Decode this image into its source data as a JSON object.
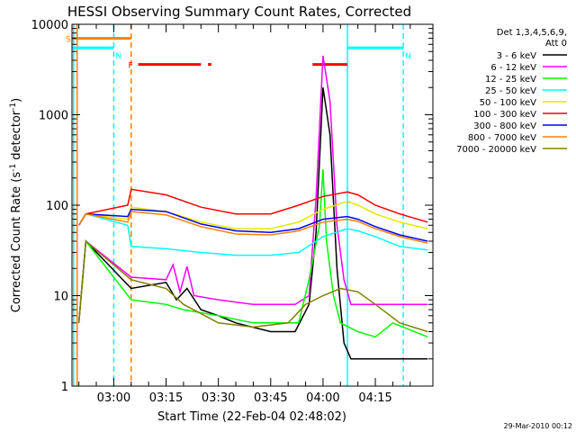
{
  "chart_data": {
    "type": "line",
    "title": "HESSI Observing Summary Count Rates, Corrected",
    "xlabel": "Start Time (22-Feb-04 02:48:02)",
    "ylabel": "Corrected Count Rate (s⁻¹ detector⁻¹)",
    "ylabel_parts": [
      "Corrected Count Rate (s",
      "-1",
      " detector",
      "-1",
      ")"
    ],
    "yscale": "log",
    "ylim": [
      1,
      10000
    ],
    "xlim_minutes": [
      168.03,
      271.5
    ],
    "x_ticks": [
      {
        "label": "03:00",
        "minutes": 180
      },
      {
        "label": "03:15",
        "minutes": 195
      },
      {
        "label": "03:30",
        "minutes": 210
      },
      {
        "label": "03:45",
        "minutes": 225
      },
      {
        "label": "04:00",
        "minutes": 240
      },
      {
        "label": "04:15",
        "minutes": 255
      }
    ],
    "y_ticks": [
      {
        "label": "1",
        "value": 1
      },
      {
        "label": "10",
        "value": 10
      },
      {
        "label": "100",
        "value": 100
      },
      {
        "label": "1000",
        "value": 1000
      },
      {
        "label": "10000",
        "value": 10000
      }
    ],
    "legend_title": [
      "Det 1,3,4,5,6,9,",
      "Att 0"
    ],
    "legend_position": "right",
    "series": [
      {
        "name": "3 - 6 keV",
        "color": "#000000",
        "points": [
          [
            170,
            5
          ],
          [
            172,
            40
          ],
          [
            185,
            12
          ],
          [
            195,
            14
          ],
          [
            198,
            9
          ],
          [
            201,
            12
          ],
          [
            205,
            7
          ],
          [
            210,
            6
          ],
          [
            215,
            5
          ],
          [
            225,
            4
          ],
          [
            232,
            4
          ],
          [
            236,
            8
          ],
          [
            238,
            50
          ],
          [
            240,
            2000
          ],
          [
            242,
            600
          ],
          [
            244,
            20
          ],
          [
            246,
            3
          ],
          [
            248,
            2
          ],
          [
            270,
            2
          ]
        ]
      },
      {
        "name": "6 - 12 keV",
        "color": "#ff00ff",
        "points": [
          [
            170,
            5
          ],
          [
            172,
            40
          ],
          [
            185,
            16
          ],
          [
            195,
            15
          ],
          [
            197,
            22
          ],
          [
            199,
            11
          ],
          [
            201,
            21
          ],
          [
            203,
            10
          ],
          [
            210,
            9
          ],
          [
            220,
            8
          ],
          [
            232,
            8
          ],
          [
            236,
            10
          ],
          [
            238,
            120
          ],
          [
            240,
            4500
          ],
          [
            242,
            1400
          ],
          [
            244,
            60
          ],
          [
            246,
            15
          ],
          [
            248,
            8
          ],
          [
            270,
            8
          ]
        ]
      },
      {
        "name": "12 - 25 keV",
        "color": "#00ff00",
        "points": [
          [
            170,
            5
          ],
          [
            172,
            40
          ],
          [
            185,
            9
          ],
          [
            195,
            8
          ],
          [
            200,
            7
          ],
          [
            210,
            6
          ],
          [
            220,
            5
          ],
          [
            233,
            5
          ],
          [
            236,
            15
          ],
          [
            239,
            60
          ],
          [
            240,
            250
          ],
          [
            241,
            40
          ],
          [
            243,
            10
          ],
          [
            245,
            5
          ],
          [
            250,
            4
          ],
          [
            255,
            3.5
          ],
          [
            260,
            5
          ],
          [
            270,
            3.5
          ]
        ]
      },
      {
        "name": "25 - 50 keV",
        "color": "#00ffff",
        "points": [
          [
            170,
            60
          ],
          [
            172,
            80
          ],
          [
            184,
            60
          ],
          [
            185,
            35
          ],
          [
            195,
            33
          ],
          [
            205,
            30
          ],
          [
            215,
            28
          ],
          [
            225,
            28
          ],
          [
            233,
            30
          ],
          [
            240,
            45
          ],
          [
            247,
            55
          ],
          [
            250,
            52
          ],
          [
            255,
            45
          ],
          [
            262,
            35
          ],
          [
            270,
            32
          ]
        ]
      },
      {
        "name": "50 - 100 keV",
        "color": "#e6e600",
        "points": [
          [
            170,
            60
          ],
          [
            172,
            80
          ],
          [
            184,
            70
          ],
          [
            185,
            95
          ],
          [
            195,
            85
          ],
          [
            205,
            65
          ],
          [
            215,
            55
          ],
          [
            225,
            55
          ],
          [
            233,
            65
          ],
          [
            240,
            90
          ],
          [
            247,
            110
          ],
          [
            250,
            100
          ],
          [
            255,
            80
          ],
          [
            262,
            65
          ],
          [
            270,
            55
          ]
        ]
      },
      {
        "name": "100 - 300 keV",
        "color": "#ff0000",
        "points": [
          [
            170,
            60
          ],
          [
            172,
            80
          ],
          [
            184,
            100
          ],
          [
            185,
            150
          ],
          [
            195,
            130
          ],
          [
            205,
            95
          ],
          [
            215,
            80
          ],
          [
            225,
            80
          ],
          [
            233,
            100
          ],
          [
            240,
            125
          ],
          [
            247,
            140
          ],
          [
            250,
            130
          ],
          [
            255,
            100
          ],
          [
            262,
            80
          ],
          [
            270,
            65
          ]
        ]
      },
      {
        "name": "300 - 800 keV",
        "color": "#0000ff",
        "points": [
          [
            170,
            60
          ],
          [
            172,
            80
          ],
          [
            184,
            75
          ],
          [
            185,
            90
          ],
          [
            195,
            85
          ],
          [
            205,
            62
          ],
          [
            215,
            52
          ],
          [
            225,
            50
          ],
          [
            233,
            55
          ],
          [
            240,
            70
          ],
          [
            247,
            75
          ],
          [
            250,
            70
          ],
          [
            255,
            58
          ],
          [
            262,
            47
          ],
          [
            270,
            40
          ]
        ]
      },
      {
        "name": "800 - 7000 keV",
        "color": "#ff8000",
        "points": [
          [
            170,
            60
          ],
          [
            172,
            80
          ],
          [
            184,
            65
          ],
          [
            185,
            85
          ],
          [
            195,
            78
          ],
          [
            205,
            58
          ],
          [
            215,
            48
          ],
          [
            225,
            47
          ],
          [
            233,
            52
          ],
          [
            240,
            65
          ],
          [
            247,
            70
          ],
          [
            250,
            66
          ],
          [
            255,
            55
          ],
          [
            262,
            45
          ],
          [
            270,
            38
          ]
        ]
      },
      {
        "name": "7000 - 20000 keV",
        "color": "#808000",
        "points": [
          [
            170,
            5
          ],
          [
            172,
            40
          ],
          [
            185,
            15
          ],
          [
            195,
            12
          ],
          [
            200,
            8
          ],
          [
            210,
            5
          ],
          [
            220,
            4.5
          ],
          [
            230,
            5
          ],
          [
            235,
            8
          ],
          [
            240,
            10
          ],
          [
            245,
            12
          ],
          [
            250,
            11
          ],
          [
            255,
            8
          ],
          [
            262,
            5
          ],
          [
            270,
            4
          ]
        ]
      }
    ],
    "flags": [
      {
        "label": "S",
        "color": "#ff8000",
        "start_minutes": 168,
        "end_minutes": 185,
        "value": 7000
      },
      {
        "label": "N",
        "color": "#00ffff",
        "start_minutes": 168,
        "end_minutes": 180,
        "value": 5500
      },
      {
        "label": "N",
        "color": "#00ffff",
        "start_minutes": 247,
        "end_minutes": 263,
        "value": 5500
      },
      {
        "label": "F",
        "color": "#ff0000",
        "start_minutes": 187,
        "end_minutes": 205,
        "value": 3600
      },
      {
        "label": "",
        "color": "#ff0000",
        "start_minutes": 207,
        "end_minutes": 208,
        "value": 3600
      },
      {
        "label": "",
        "color": "#ff0000",
        "start_minutes": 237,
        "end_minutes": 247,
        "value": 3600
      }
    ],
    "vertical_lines": [
      {
        "minutes": 168.5,
        "color": "#00ffff",
        "style": "solid"
      },
      {
        "minutes": 169.5,
        "color": "#ff8000",
        "style": "solid"
      },
      {
        "minutes": 180,
        "color": "#00ffff",
        "style": "dashed"
      },
      {
        "minutes": 185,
        "color": "#ff8000",
        "style": "dashed"
      },
      {
        "minutes": 247,
        "color": "#00ffff",
        "style": "solid"
      },
      {
        "minutes": 263,
        "color": "#00ffff",
        "style": "dashed"
      }
    ],
    "footer": "29-Mar-2010 00:12"
  }
}
